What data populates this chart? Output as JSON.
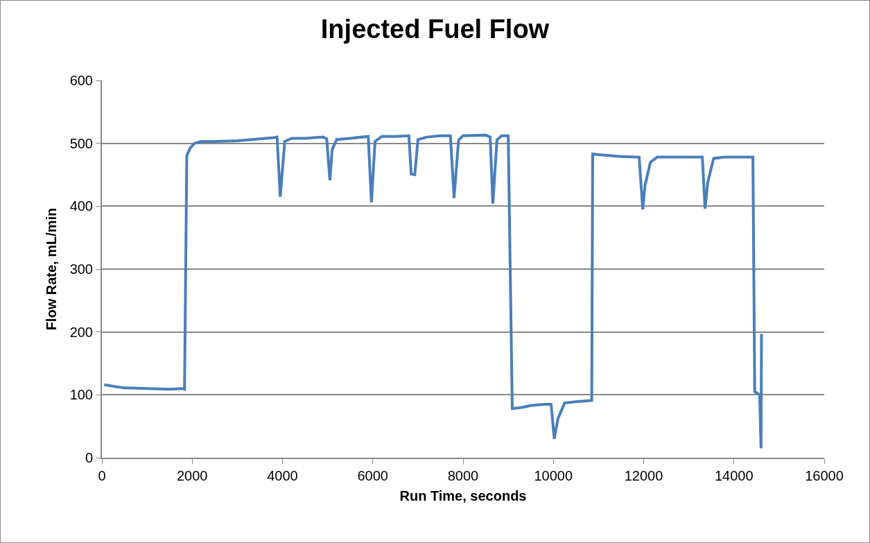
{
  "chart_data": {
    "type": "line",
    "title": "Injected Fuel Flow",
    "xlabel": "Run Time, seconds",
    "ylabel": "Flow Rate, mL/min",
    "x": [
      50,
      300,
      500,
      1000,
      1500,
      1800,
      1830,
      1880,
      1950,
      2050,
      2200,
      2500,
      3000,
      3500,
      3800,
      3880,
      3950,
      4050,
      4200,
      4500,
      4900,
      4980,
      5050,
      5100,
      5200,
      5500,
      5900,
      5970,
      6050,
      6200,
      6500,
      6800,
      6850,
      6930,
      7000,
      7200,
      7500,
      7720,
      7800,
      7900,
      8000,
      8500,
      8600,
      8660,
      8750,
      8850,
      9000,
      9090,
      9300,
      9500,
      9800,
      9950,
      10020,
      10100,
      10250,
      10500,
      10850,
      10870,
      11000,
      11500,
      11900,
      11980,
      12030,
      12150,
      12300,
      12800,
      13200,
      13300,
      13360,
      13420,
      13550,
      13800,
      14420,
      14460,
      14570,
      14600,
      14610
    ],
    "series": [
      {
        "color": "#4a7ebb",
        "values": [
          116,
          113,
          111,
          110,
          109,
          110,
          109,
          480,
          492,
          500,
          503,
          503,
          504,
          507,
          509,
          510,
          415,
          503,
          508,
          508,
          510,
          507,
          441,
          490,
          506,
          508,
          511,
          406,
          503,
          511,
          511,
          512,
          451,
          450,
          506,
          510,
          512,
          512,
          413,
          505,
          512,
          513,
          510,
          404,
          505,
          512,
          512,
          78,
          80,
          83,
          85,
          85,
          30,
          62,
          87,
          89,
          91,
          483,
          482,
          479,
          478,
          395,
          433,
          470,
          478,
          478,
          478,
          478,
          396,
          438,
          476,
          478,
          478,
          105,
          100,
          15,
          197
        ]
      }
    ],
    "xlim": [
      0,
      16000
    ],
    "xticks": [
      0,
      2000,
      4000,
      6000,
      8000,
      10000,
      12000,
      14000,
      16000
    ],
    "ylim": [
      0,
      600
    ],
    "yticks": [
      0,
      100,
      200,
      300,
      400,
      500,
      600
    ],
    "grid": "y",
    "legend": false,
    "marker": "none",
    "line_style": "solid"
  }
}
